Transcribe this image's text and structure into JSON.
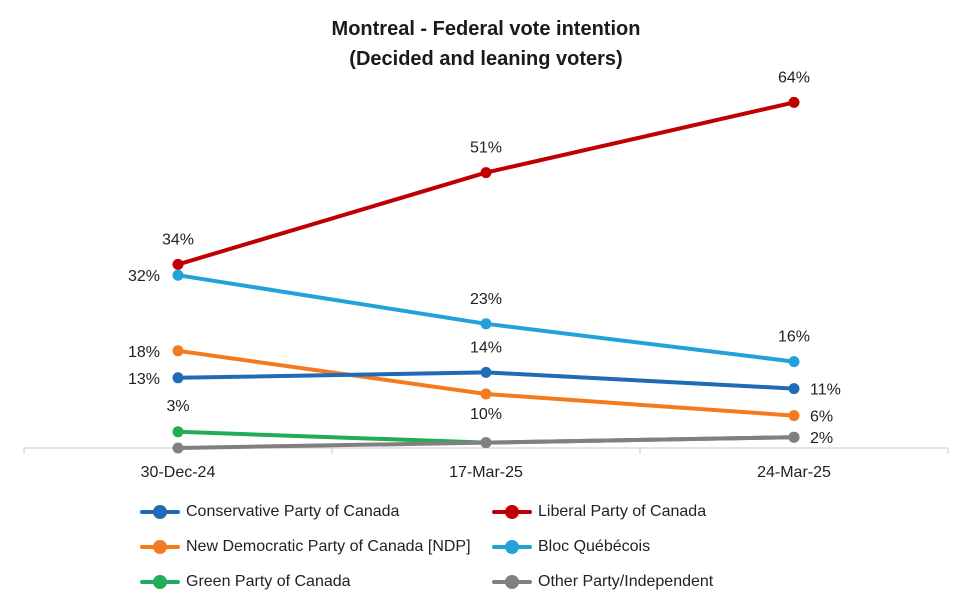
{
  "chart_data": {
    "type": "line",
    "title": "Montreal - Federal vote intention",
    "subtitle": "(Decided and leaning voters)",
    "categories": [
      "30-Dec-24",
      "17-Mar-25",
      "24-Mar-25"
    ],
    "ylim": [
      0,
      70
    ],
    "grid": false,
    "legend_position": "bottom",
    "series": [
      {
        "name": "Conservative Party of Canada",
        "values": [
          13,
          14,
          11
        ],
        "labels": [
          "13%",
          "14%",
          "11%"
        ],
        "color": "#1f6bb5"
      },
      {
        "name": "Liberal Party of Canada",
        "values": [
          34,
          51,
          64
        ],
        "labels": [
          "34%",
          "51%",
          "64%"
        ],
        "color": "#c00000"
      },
      {
        "name": "New Democratic Party of Canada [NDP]",
        "values": [
          18,
          10,
          6
        ],
        "labels": [
          "18%",
          "10%",
          "6%"
        ],
        "color": "#f47a20"
      },
      {
        "name": "Bloc Québécois",
        "values": [
          32,
          23,
          16
        ],
        "labels": [
          "32%",
          "23%",
          "16%"
        ],
        "color": "#22a2d8"
      },
      {
        "name": "Green Party of Canada",
        "values": [
          3,
          1,
          2
        ],
        "labels": [
          "3%",
          "",
          ""
        ],
        "color": "#1fae55"
      },
      {
        "name": "Other Party/Independent",
        "values": [
          0,
          1,
          2
        ],
        "labels": [
          "",
          "",
          "2%"
        ],
        "color": "#808080"
      }
    ]
  }
}
